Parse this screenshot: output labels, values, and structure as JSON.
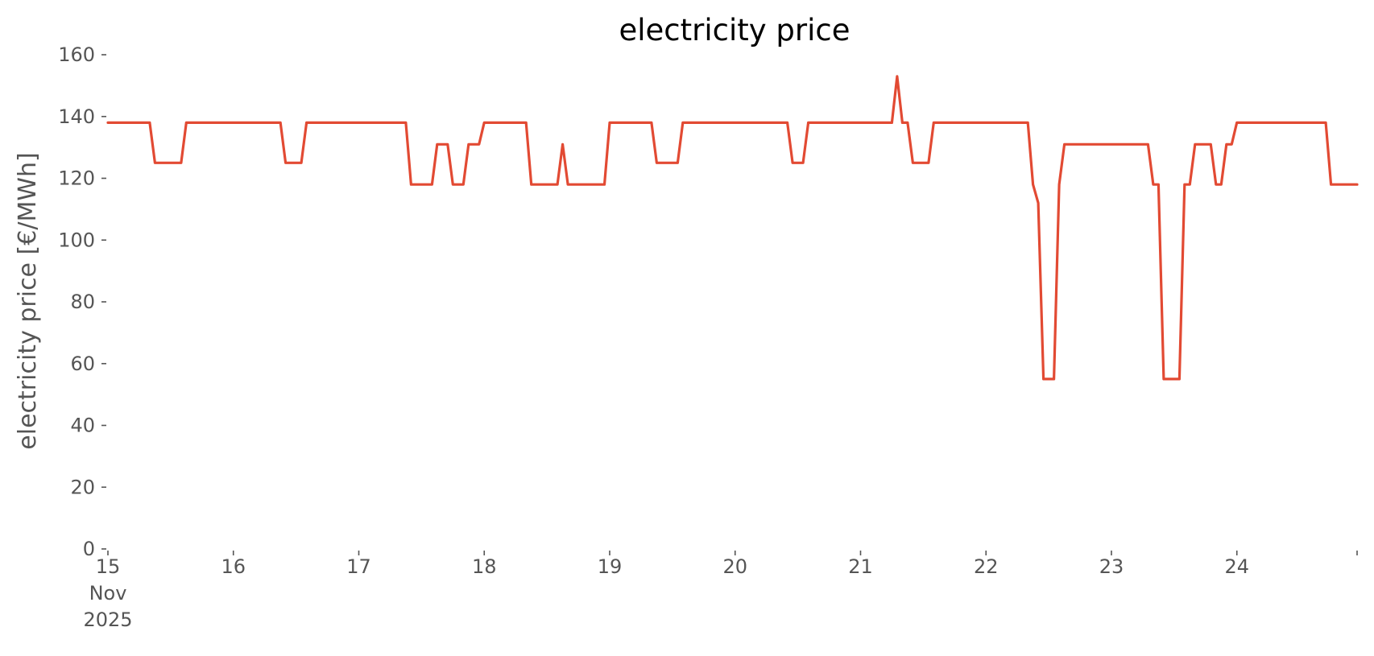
{
  "chart_data": {
    "type": "line",
    "title": "electricity price",
    "xlabel": "",
    "ylabel": "electricity price [€/MWh]",
    "ylim": [
      0,
      160
    ],
    "xlim": [
      "2025-11-15 00:00",
      "2025-11-24 23:00"
    ],
    "grid": false,
    "legend": "none",
    "yticks": [
      0,
      20,
      40,
      60,
      80,
      100,
      120,
      140,
      160
    ],
    "xtick_labels": [
      {
        "at": "2025-11-15",
        "lines": [
          "15",
          "Nov",
          "2025"
        ]
      },
      {
        "at": "2025-11-16",
        "lines": [
          "16"
        ]
      },
      {
        "at": "2025-11-17",
        "lines": [
          "17"
        ]
      },
      {
        "at": "2025-11-18",
        "lines": [
          "18"
        ]
      },
      {
        "at": "2025-11-19",
        "lines": [
          "19"
        ]
      },
      {
        "at": "2025-11-20",
        "lines": [
          "20"
        ]
      },
      {
        "at": "2025-11-21",
        "lines": [
          "21"
        ]
      },
      {
        "at": "2025-11-22",
        "lines": [
          "22"
        ]
      },
      {
        "at": "2025-11-23",
        "lines": [
          "23"
        ]
      },
      {
        "at": "2025-11-24",
        "lines": [
          "24"
        ]
      }
    ],
    "series": [
      {
        "color": "#e24a33",
        "points": [
          [
            "2025-11-15 00:00",
            138
          ],
          [
            "2025-11-15 08:00",
            138
          ],
          [
            "2025-11-15 09:00",
            125
          ],
          [
            "2025-11-15 14:00",
            125
          ],
          [
            "2025-11-15 15:00",
            138
          ],
          [
            "2025-11-16 09:00",
            138
          ],
          [
            "2025-11-16 10:00",
            125
          ],
          [
            "2025-11-16 13:00",
            125
          ],
          [
            "2025-11-16 14:00",
            138
          ],
          [
            "2025-11-17 09:00",
            138
          ],
          [
            "2025-11-17 10:00",
            118
          ],
          [
            "2025-11-17 14:00",
            118
          ],
          [
            "2025-11-17 15:00",
            131
          ],
          [
            "2025-11-17 17:00",
            131
          ],
          [
            "2025-11-17 18:00",
            118
          ],
          [
            "2025-11-17 20:00",
            118
          ],
          [
            "2025-11-17 21:00",
            131
          ],
          [
            "2025-11-17 23:00",
            131
          ],
          [
            "2025-11-18 00:00",
            138
          ],
          [
            "2025-11-18 08:00",
            138
          ],
          [
            "2025-11-18 09:00",
            118
          ],
          [
            "2025-11-18 14:00",
            118
          ],
          [
            "2025-11-18 15:00",
            131
          ],
          [
            "2025-11-18 16:00",
            118
          ],
          [
            "2025-11-18 23:00",
            118
          ],
          [
            "2025-11-19 00:00",
            138
          ],
          [
            "2025-11-19 08:00",
            138
          ],
          [
            "2025-11-19 09:00",
            125
          ],
          [
            "2025-11-19 13:00",
            125
          ],
          [
            "2025-11-19 14:00",
            138
          ],
          [
            "2025-11-20 10:00",
            138
          ],
          [
            "2025-11-20 11:00",
            125
          ],
          [
            "2025-11-20 13:00",
            125
          ],
          [
            "2025-11-20 14:00",
            138
          ],
          [
            "2025-11-21 06:00",
            138
          ],
          [
            "2025-11-21 07:00",
            153
          ],
          [
            "2025-11-21 08:00",
            138
          ],
          [
            "2025-11-21 09:00",
            138
          ],
          [
            "2025-11-21 10:00",
            125
          ],
          [
            "2025-11-21 13:00",
            125
          ],
          [
            "2025-11-21 14:00",
            138
          ],
          [
            "2025-11-22 08:00",
            138
          ],
          [
            "2025-11-22 09:00",
            118
          ],
          [
            "2025-11-22 10:00",
            112
          ],
          [
            "2025-11-22 11:00",
            55
          ],
          [
            "2025-11-22 13:00",
            55
          ],
          [
            "2025-11-22 14:00",
            118
          ],
          [
            "2025-11-22 15:00",
            131
          ],
          [
            "2025-11-23 07:00",
            131
          ],
          [
            "2025-11-23 08:00",
            118
          ],
          [
            "2025-11-23 09:00",
            118
          ],
          [
            "2025-11-23 10:00",
            55
          ],
          [
            "2025-11-23 13:00",
            55
          ],
          [
            "2025-11-23 14:00",
            118
          ],
          [
            "2025-11-23 15:00",
            118
          ],
          [
            "2025-11-23 16:00",
            131
          ],
          [
            "2025-11-23 19:00",
            131
          ],
          [
            "2025-11-23 20:00",
            118
          ],
          [
            "2025-11-23 21:00",
            118
          ],
          [
            "2025-11-23 22:00",
            131
          ],
          [
            "2025-11-23 23:00",
            131
          ],
          [
            "2025-11-24 00:00",
            138
          ],
          [
            "2025-11-24 17:00",
            138
          ],
          [
            "2025-11-24 18:00",
            118
          ],
          [
            "2025-11-24 23:00",
            118
          ]
        ]
      }
    ]
  }
}
